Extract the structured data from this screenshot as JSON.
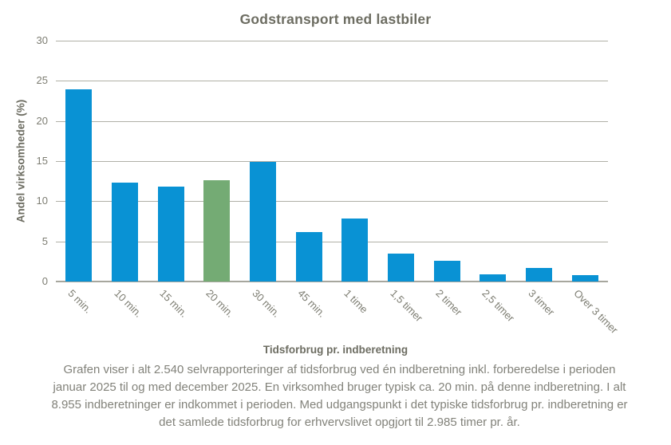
{
  "chart_data": {
    "type": "bar",
    "title": "Godstransport med lastbiler",
    "xlabel": "Tidsforbrug pr. indberetning",
    "ylabel": "Andel virksomheder  (%)",
    "categories": [
      "5 min.",
      "10 min.",
      "15 min.",
      "20 min.",
      "30 min.",
      "45 min.",
      "1 time",
      "1,5 timer",
      "2 timer",
      "2,5 timer",
      "3 timer",
      "Over 3 timer"
    ],
    "values": [
      23.9,
      12.3,
      11.8,
      12.6,
      14.9,
      6.2,
      7.8,
      3.5,
      2.6,
      0.9,
      1.7,
      0.8
    ],
    "highlight_category": "20 min.",
    "highlight_index": 3,
    "bar_color": "#0992d4",
    "highlight_color": "#74ab74",
    "ylim": [
      0,
      30
    ],
    "yticks": [
      0,
      5,
      10,
      15,
      20,
      25,
      30
    ],
    "grid": true,
    "legend": "none"
  },
  "caption": {
    "lines": [
      "Grafen viser i alt 2.540 selvrapporteringer  af tidsforbrug  ved én indberetning  inkl. forberedelse i perioden",
      "januar 2025 til  og med december 2025. En virksomhed bruger typisk  ca. 20 min. på denne indberetning.  I alt",
      "8.955 indberetninger er indkommet i perioden.  Med udgangspunkt i det typiske  tidsforbrug  pr. indberetning er",
      "det samlede tidsforbrug  for erhvervslivet  opgjort til  2.985 timer  pr. år."
    ]
  },
  "colors": {
    "text_heading": "#6d6d62",
    "text_ticks": "#7d7d72",
    "text_caption": "#82827a",
    "gridline": "#b0b0a7",
    "axisline": "#a7a79e",
    "background": "#ffffff"
  }
}
